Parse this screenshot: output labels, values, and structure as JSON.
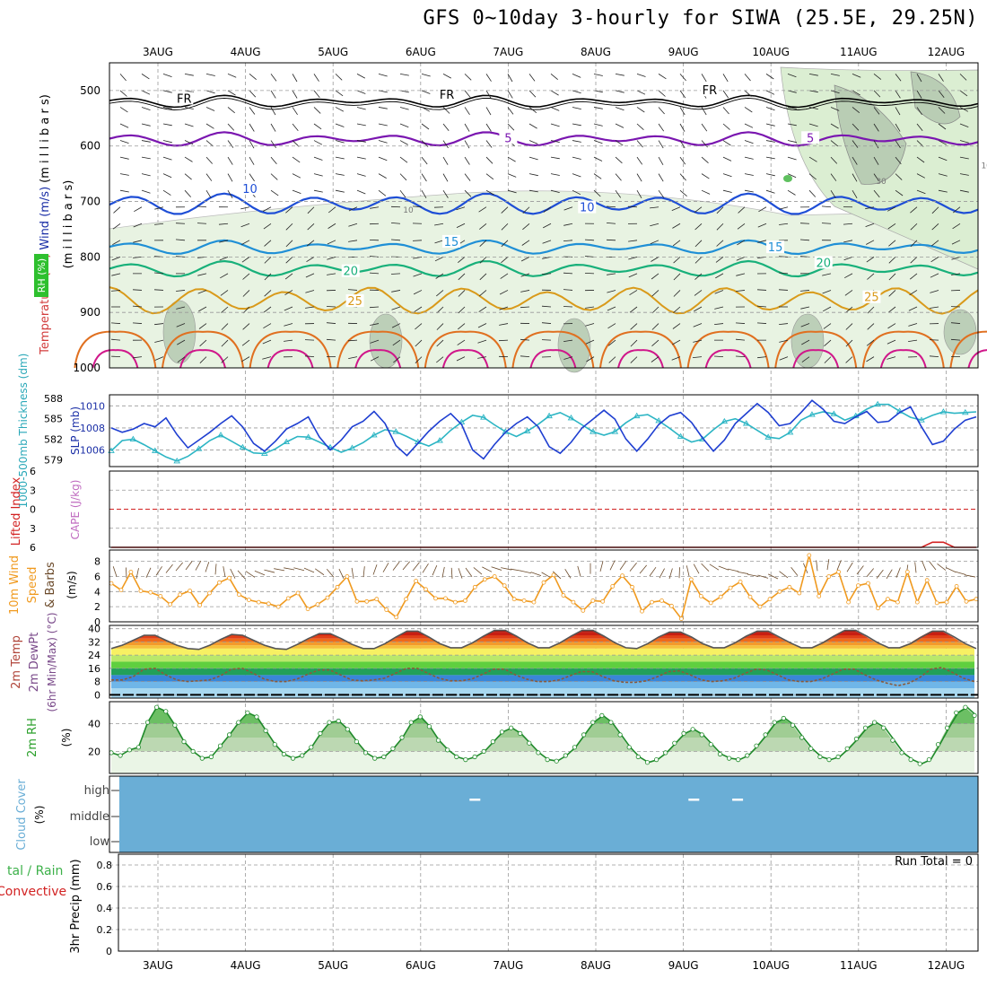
{
  "title": "GFS 0~10day 3-hourly for SIWA (25.5E, 29.25N)",
  "days": [
    "3AUG",
    "4AUG",
    "5AUG",
    "6AUG",
    "7AUG",
    "8AUG",
    "9AUG",
    "10AUG",
    "11AUG",
    "12AUG"
  ],
  "colors": {
    "grid": "#999999",
    "slp": "#1f3fd1",
    "thickness": "#2cb5c4",
    "wind": "#f09a1f",
    "barb": "#6b4a2a",
    "cloud": "#6aaed6",
    "rh": "#3db14a",
    "dewpt": "#7a4a8a",
    "lifted": "#d22222",
    "cape": "#c06bc0"
  },
  "chart_data": [
    {
      "type": "heatmap",
      "name": "upper-air",
      "title": "",
      "ylabel_parts": [
        {
          "text": "RH (%)",
          "color": "#2ba02b"
        },
        {
          "text": "Temperature (°C)",
          "color": "#d23c3c"
        },
        {
          "text": "Wind (m/s)",
          "color": "#1a2ea6"
        },
        {
          "text": "(m i l l i b a r s)",
          "color": "#000000"
        }
      ],
      "ylim": [
        1000,
        450
      ],
      "y_ticks": [
        500,
        600,
        700,
        800,
        900,
        1000
      ],
      "isotherm_labels": [
        {
          "text": "FR",
          "color": "#000000",
          "day": 0.3,
          "p": 517
        },
        {
          "text": "FR",
          "color": "#000000",
          "day": 3.3,
          "p": 510
        },
        {
          "text": "FR",
          "color": "#000000",
          "day": 6.3,
          "p": 502
        },
        {
          "text": "5",
          "color": "#7a16b0",
          "day": 4.0,
          "p": 588
        },
        {
          "text": "5",
          "color": "#7a16b0",
          "day": 7.45,
          "p": 588
        },
        {
          "text": "10",
          "color": "#1e4ed6",
          "day": 1.05,
          "p": 680
        },
        {
          "text": "10",
          "color": "#1e4ed6",
          "day": 4.9,
          "p": 713
        },
        {
          "text": "15",
          "color": "#1f8fd6",
          "day": 3.35,
          "p": 775
        },
        {
          "text": "15",
          "color": "#1f8fd6",
          "day": 7.05,
          "p": 785
        },
        {
          "text": "20",
          "color": "#18b07a",
          "day": 2.2,
          "p": 828
        },
        {
          "text": "20",
          "color": "#18b07a",
          "day": 7.6,
          "p": 813
        },
        {
          "text": "25",
          "color": "#d99a1a",
          "day": 2.25,
          "p": 882
        },
        {
          "text": "25",
          "color": "#d99a1a",
          "day": 8.15,
          "p": 875
        }
      ],
      "rh_labels": [
        {
          "text": "10",
          "day": 2.8,
          "p": 720
        },
        {
          "text": "30",
          "day": 8.2,
          "p": 668
        },
        {
          "text": "10",
          "day": 9.4,
          "p": 640
        }
      ]
    },
    {
      "type": "line",
      "name": "slp-thickness",
      "left_axis_label": "1000-500mb Thickness (dm)",
      "right_axis_label": "SLP (mb)",
      "left_ticks": [
        579,
        582,
        585,
        588
      ],
      "right_ticks": [
        1006,
        1008,
        1010
      ],
      "ylim_slp": [
        1004.5,
        1011
      ],
      "ylim_thickness": [
        578,
        588.5
      ],
      "series": [
        {
          "name": "SLP (mb)",
          "values": [
            1008.0,
            1007.6,
            1007.9,
            1008.4,
            1008.1,
            1008.9,
            1007.4,
            1006.2,
            1006.9,
            1007.6,
            1008.4,
            1009.1,
            1008.1,
            1006.6,
            1005.9,
            1006.8,
            1007.9,
            1008.4,
            1009.0,
            1007.2,
            1006.0,
            1006.9,
            1008.1,
            1008.6,
            1009.5,
            1008.4,
            1006.4,
            1005.5,
            1006.6,
            1007.7,
            1008.6,
            1009.3,
            1008.3,
            1006.0,
            1005.2,
            1006.5,
            1007.6,
            1008.4,
            1009.0,
            1008.1,
            1006.3,
            1005.7,
            1006.7,
            1008.0,
            1008.8,
            1009.6,
            1008.8,
            1007.0,
            1005.9,
            1007.0,
            1008.3,
            1009.1,
            1009.4,
            1008.5,
            1007.1,
            1005.9,
            1006.9,
            1008.4,
            1009.3,
            1010.2,
            1009.4,
            1008.2,
            1008.4,
            1009.4,
            1010.5,
            1009.7,
            1008.6,
            1008.4,
            1009.0,
            1009.5,
            1008.5,
            1008.6,
            1009.4,
            1009.9,
            1008.1,
            1006.5,
            1006.8,
            1007.9,
            1008.7,
            1009.0
          ]
        },
        {
          "name": "1000-500mb Thickness (dm)",
          "values": [
            580.3,
            581.8,
            582.0,
            581.2,
            580.3,
            579.4,
            578.8,
            579.5,
            580.6,
            581.8,
            582.6,
            581.7,
            580.8,
            580.0,
            579.9,
            580.6,
            581.6,
            582.4,
            582.3,
            581.6,
            580.8,
            580.1,
            580.7,
            581.5,
            582.6,
            583.4,
            583.1,
            582.4,
            581.6,
            581.0,
            581.8,
            583.3,
            584.5,
            585.5,
            585.2,
            584.1,
            583.1,
            582.4,
            583.2,
            584.2,
            585.4,
            585.9,
            585.1,
            584.1,
            583.1,
            582.6,
            583.1,
            584.4,
            585.4,
            585.6,
            584.7,
            583.6,
            582.4,
            581.6,
            582.0,
            583.4,
            584.6,
            585.0,
            584.3,
            583.3,
            582.3,
            582.1,
            583.0,
            584.8,
            585.6,
            586.0,
            585.7,
            584.8,
            585.4,
            586.4,
            587.1,
            587.1,
            586.1,
            585.2,
            584.8,
            585.5,
            586.0,
            585.8,
            585.9,
            586.0
          ]
        }
      ]
    },
    {
      "type": "line",
      "name": "lifted-cape",
      "left_axis_label": "Lifted Index",
      "right_axis_label": "CAPE (J/kg)",
      "ticks": [
        "-6",
        "-3",
        "0",
        "3",
        "6"
      ],
      "ylim": [
        -6,
        6
      ],
      "series": [
        {
          "name": "Lifted Index",
          "values": [
            6,
            6,
            6,
            6,
            6,
            6,
            6,
            6,
            6,
            6,
            6,
            6,
            6,
            6,
            6,
            6,
            6,
            6,
            6,
            6,
            6,
            6,
            6,
            6,
            6,
            6,
            6,
            6,
            6,
            6,
            6,
            6,
            6,
            6,
            6,
            6,
            6,
            6,
            6,
            6,
            6,
            6,
            6,
            6,
            6,
            6,
            6,
            6,
            6,
            6,
            6,
            6,
            6,
            6,
            6,
            6,
            6,
            6,
            6,
            6,
            6,
            6,
            6,
            6,
            6,
            6,
            6,
            6,
            6,
            6,
            6,
            6,
            6,
            6,
            6,
            5.2,
            5.2,
            6,
            6,
            6
          ]
        }
      ]
    },
    {
      "type": "line",
      "name": "wind-10m",
      "ylabel": "10m Wind Speed & Barbs (m/s)",
      "ticks": [
        0,
        2,
        4,
        6,
        8
      ],
      "ylim": [
        0,
        9.5
      ],
      "series": [
        {
          "name": "10m Wind Speed (m/s)",
          "values": [
            5.1,
            4.2,
            6.6,
            4.1,
            3.9,
            3.4,
            2.3,
            3.6,
            4.1,
            2.2,
            3.8,
            5.2,
            5.8,
            3.6,
            2.9,
            2.6,
            2.4,
            2.0,
            3.1,
            3.8,
            1.7,
            2.3,
            3.2,
            4.6,
            6.0,
            2.7,
            2.7,
            3.0,
            1.6,
            0.6,
            3.0,
            5.4,
            4.3,
            3.1,
            3.1,
            2.6,
            2.8,
            4.6,
            5.6,
            6.0,
            4.8,
            3.0,
            2.8,
            2.6,
            5.2,
            6.2,
            3.5,
            2.6,
            1.5,
            2.8,
            2.7,
            4.7,
            6.1,
            4.6,
            1.4,
            2.6,
            2.8,
            2.1,
            0.4,
            5.6,
            3.4,
            2.5,
            3.3,
            4.5,
            5.3,
            3.3,
            2.0,
            3.0,
            4.0,
            4.6,
            3.8,
            8.8,
            3.4,
            6.0,
            6.6,
            2.6,
            4.8,
            5.1,
            1.8,
            3.0,
            2.6,
            6.6,
            2.6,
            5.5,
            2.5,
            2.6,
            4.7,
            2.7,
            3.0
          ]
        }
      ]
    },
    {
      "type": "line",
      "name": "temp-2m",
      "ylabel_lines": [
        "2m Temp",
        "2m DewPt",
        "(6hr Min/Max) (°C)"
      ],
      "ticks": [
        0,
        8,
        16,
        24,
        32,
        40
      ],
      "ylim": [
        -2,
        42
      ],
      "series": [
        {
          "name": "2m Temp",
          "values": [
            28.0,
            30.0,
            33.0,
            36.0,
            36.0,
            33.0,
            30.0,
            28.0,
            27.5,
            30.0,
            33.5,
            36.5,
            36.0,
            33.0,
            30.0,
            28.0,
            27.5,
            30.5,
            34.0,
            37.0,
            37.0,
            34.0,
            30.5,
            28.0,
            28.0,
            31.0,
            35.0,
            38.5,
            38.5,
            35.0,
            31.0,
            28.5,
            28.5,
            31.5,
            35.5,
            39.0,
            39.0,
            35.5,
            31.5,
            28.5,
            28.5,
            31.5,
            35.5,
            39.0,
            39.0,
            35.5,
            31.5,
            28.5,
            28.0,
            31.0,
            35.0,
            38.0,
            38.0,
            35.0,
            31.0,
            28.5,
            28.5,
            31.5,
            35.5,
            38.5,
            38.5,
            35.0,
            31.5,
            28.5,
            28.5,
            31.5,
            35.5,
            39.0,
            39.0,
            35.5,
            31.5,
            28.5,
            28.5,
            31.0,
            35.0,
            38.5,
            38.5,
            35.0,
            31.0,
            28.0
          ]
        },
        {
          "name": "2m DewPt",
          "values": [
            9.0,
            9.0,
            11.0,
            15.5,
            16.0,
            12.0,
            9.0,
            8.0,
            8.5,
            9.0,
            11.5,
            15.5,
            16.0,
            13.0,
            9.5,
            8.0,
            8.0,
            9.5,
            12.5,
            15.0,
            15.0,
            12.0,
            9.0,
            8.5,
            9.0,
            10.0,
            13.0,
            16.0,
            16.0,
            13.0,
            10.0,
            8.5,
            8.5,
            9.5,
            12.5,
            15.5,
            15.5,
            12.0,
            9.5,
            8.0,
            8.0,
            9.0,
            11.5,
            14.0,
            14.0,
            11.0,
            8.5,
            7.5,
            7.5,
            8.5,
            11.0,
            14.0,
            14.5,
            12.0,
            9.0,
            8.0,
            8.5,
            10.0,
            13.0,
            15.5,
            15.0,
            12.0,
            9.0,
            8.0,
            8.0,
            9.5,
            12.5,
            15.5,
            15.5,
            12.0,
            9.0,
            7.0,
            5.5,
            7.0,
            10.5,
            15.5,
            16.5,
            13.5,
            10.0,
            8.0
          ]
        }
      ]
    },
    {
      "type": "area",
      "name": "rh-2m",
      "ylabel": "2m RH (%)",
      "ticks": [
        20,
        40
      ],
      "ylim": [
        4,
        56
      ],
      "series": [
        {
          "name": "2m RH (%)",
          "values": [
            19,
            17,
            21,
            23,
            41,
            52,
            49,
            39,
            27,
            20,
            15,
            16,
            24,
            32,
            41,
            48,
            45,
            35,
            25,
            18,
            15,
            17,
            23,
            33,
            41,
            42,
            36,
            27,
            19,
            15,
            16,
            22,
            30,
            41,
            45,
            38,
            28,
            21,
            16,
            14,
            16,
            20,
            27,
            34,
            37,
            33,
            26,
            19,
            14,
            13,
            17,
            23,
            32,
            41,
            46,
            41,
            32,
            23,
            16,
            12,
            14,
            19,
            26,
            33,
            36,
            32,
            25,
            18,
            15,
            14,
            17,
            24,
            32,
            41,
            44,
            39,
            30,
            22,
            16,
            14,
            16,
            22,
            29,
            37,
            41,
            37,
            28,
            19,
            14,
            11,
            14,
            25,
            37,
            48,
            52,
            46
          ]
        }
      ]
    },
    {
      "type": "heatmap",
      "name": "cloud-cover",
      "ylabel": "Cloud Cover (%)",
      "levels": [
        "high",
        "middle",
        "low"
      ],
      "gaps": [
        {
          "level": "high",
          "day": 3.62
        },
        {
          "level": "high",
          "day": 6.12
        },
        {
          "level": "high",
          "day": 6.62
        }
      ]
    },
    {
      "type": "bar",
      "name": "precip-3hr",
      "ylabel": "3hr Precip (mm)",
      "legend": [
        {
          "text": "Total / Rain",
          "color": "#3db14a"
        },
        {
          "text": "Convective",
          "color": "#d22222"
        }
      ],
      "ticks": [
        "0",
        "0.2",
        "0.4",
        "0.6",
        "0.8"
      ],
      "ylim": [
        0,
        0.9
      ],
      "run_total": "Run Total = 0",
      "values": []
    }
  ]
}
